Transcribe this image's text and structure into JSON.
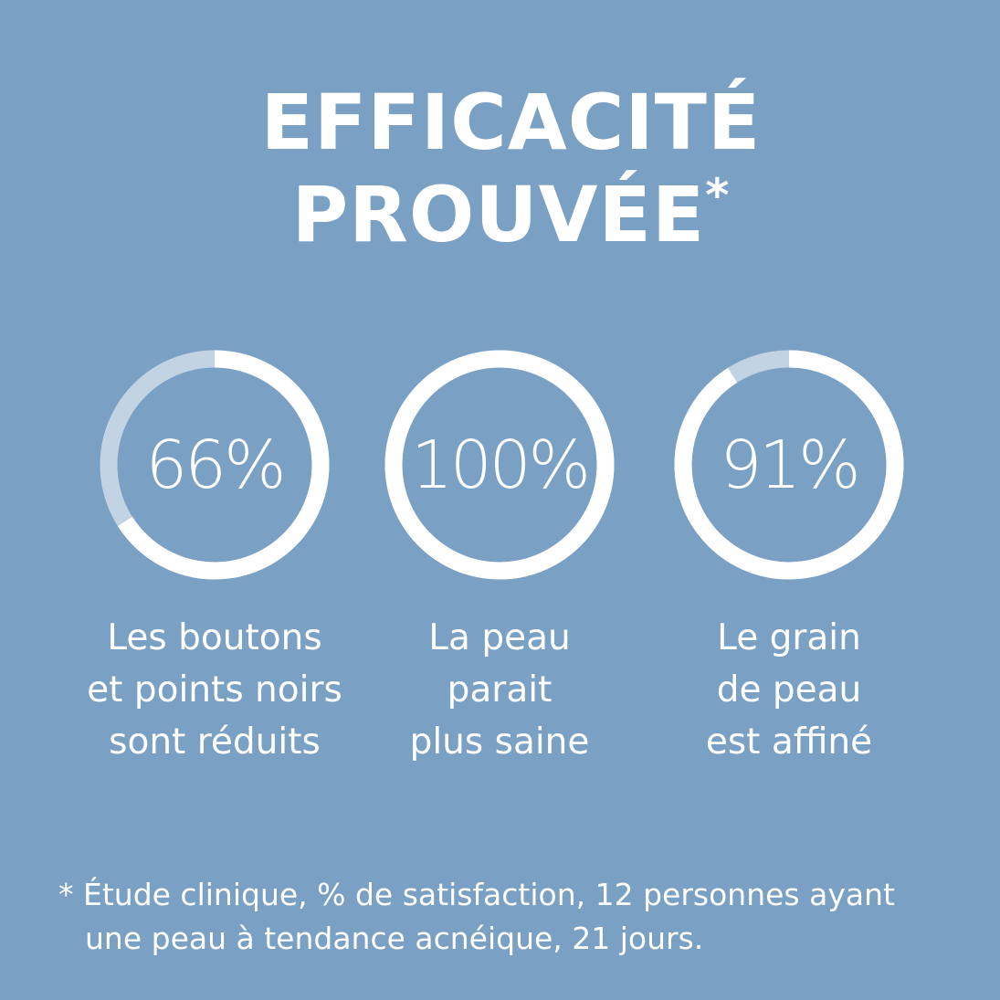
{
  "title": {
    "line1": "EFFICACITÉ",
    "line2": "PROUVÉE",
    "asterisk": "*"
  },
  "colors": {
    "background": "#7aa0c4",
    "ring_fill": "#ffffff",
    "ring_track": "#c2d3e3"
  },
  "stats": [
    {
      "percent": 66,
      "value_text": "66%",
      "label": [
        "Les boutons",
        "et points noirs",
        "sont réduits"
      ]
    },
    {
      "percent": 100,
      "value_text": "100%",
      "label": [
        "La peau",
        "parait",
        "plus saine"
      ]
    },
    {
      "percent": 91,
      "value_text": "91%",
      "label": [
        "Le grain",
        "de peau",
        "est affiné"
      ]
    }
  ],
  "footnote": {
    "line1": "* Étude clinique, % de satisfaction, 12 personnes ayant",
    "line2": "une peau à tendance acnéique, 21 jours."
  }
}
